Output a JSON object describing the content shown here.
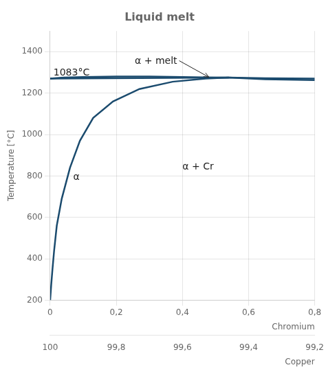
{
  "chart_data": {
    "type": "line",
    "title": "Liquid melt",
    "xlabel": "Chromium",
    "x2label": "Copper",
    "ylabel": "Temperature [°C]",
    "xlim": [
      0.0,
      0.8
    ],
    "xticks": [
      0,
      {
        "value": 0.2,
        "label": "0,2"
      },
      {
        "value": 0.4,
        "label": "0,4"
      },
      {
        "value": 0.6,
        "label": "0,6"
      },
      {
        "value": 0.8,
        "label": "0,8"
      }
    ],
    "x2lim": [
      0.0,
      0.8
    ],
    "x2ticks": [
      {
        "value": 0,
        "label": "100"
      },
      {
        "value": 0.2,
        "label": "99,8"
      },
      {
        "value": 0.4,
        "label": "99,6"
      },
      {
        "value": 0.6,
        "label": "99,4"
      },
      {
        "value": 0.8,
        "label": "99,2"
      }
    ],
    "ylim": [
      200,
      1500
    ],
    "yticks": [
      200,
      400,
      600,
      800,
      1000,
      1200,
      1400
    ],
    "grid": true,
    "series": [
      {
        "color": "#1b4b6e",
        "x": [
          0.0,
          0.003,
          0.007,
          0.012,
          0.02,
          0.035,
          0.06,
          0.09,
          0.13,
          0.19,
          0.27,
          0.37,
          0.47,
          0.54
        ],
        "values": [
          200,
          270,
          350,
          440,
          560,
          690,
          840,
          970,
          1080,
          1160,
          1220,
          1255,
          1270,
          1275
        ]
      },
      {
        "color": "#1b4b6e",
        "x": [
          0.0,
          0.04,
          0.1,
          0.2,
          0.3,
          0.4,
          0.5,
          0.54,
          0.65,
          0.8
        ],
        "values": [
          1270,
          1275,
          1278,
          1280,
          1280,
          1278,
          1275,
          1275,
          1272,
          1270
        ]
      },
      {
        "color": "#1b4b6e",
        "x": [
          0.0,
          0.54,
          0.65,
          0.8
        ],
        "values": [
          1270,
          1275,
          1267,
          1263
        ]
      }
    ],
    "annotations": [
      {
        "text": "1083°C",
        "x": 0.01,
        "y": 1285
      },
      {
        "text": "α",
        "x": 0.07,
        "y": 780
      },
      {
        "text": "α + Cr",
        "x": 0.4,
        "y": 830
      },
      {
        "text": "α + melt",
        "x": 0.32,
        "y": 1340,
        "arrow_to": [
          0.48,
          1277
        ]
      }
    ]
  }
}
